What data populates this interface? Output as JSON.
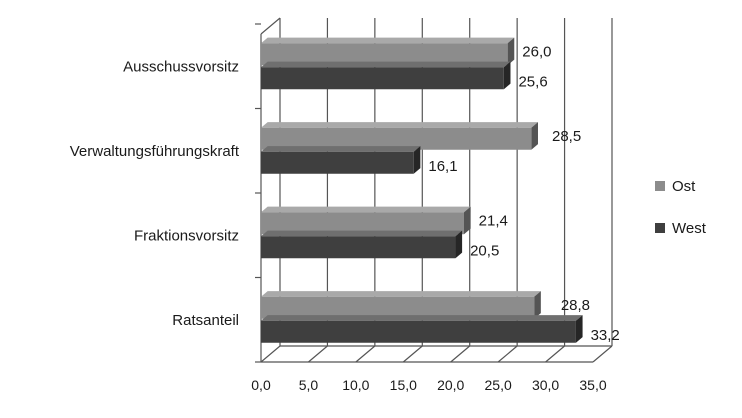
{
  "chart_data": {
    "type": "bar",
    "orientation": "horizontal",
    "three_d": true,
    "title": "",
    "xlabel": "",
    "ylabel": "",
    "categories": [
      "Ausschussvorsitz",
      "Verwaltungsführungskraft",
      "Fraktionsvorsitz",
      "Ratsanteil"
    ],
    "series": [
      {
        "name": "Ost",
        "values": [
          26.0,
          28.5,
          21.4,
          28.8
        ],
        "color": "#8c8c8c",
        "labels": [
          "26,0",
          "28,5",
          "21,4",
          "28,8"
        ]
      },
      {
        "name": "West",
        "values": [
          25.6,
          16.1,
          20.5,
          33.2
        ],
        "color": "#3f3f3f",
        "labels": [
          "25,6",
          "16,1",
          "20,5",
          "33,2"
        ]
      }
    ],
    "xlim": [
      0,
      35
    ],
    "xticks": [
      0,
      5,
      10,
      15,
      20,
      25,
      30,
      35
    ],
    "xtick_labels": [
      "0,0",
      "5,0",
      "10,0",
      "15,0",
      "20,0",
      "25,0",
      "30,0",
      "35,0"
    ],
    "grid": true,
    "legend_position": "right"
  }
}
